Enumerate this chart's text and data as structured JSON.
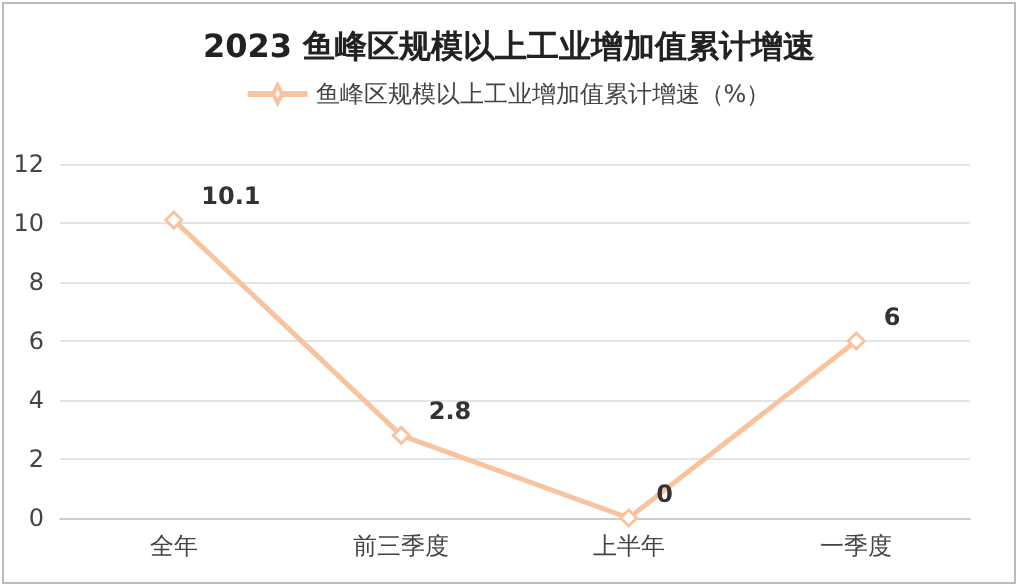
{
  "chart_data": {
    "type": "line",
    "title": "2023 鱼峰区规模以上工业增加值累计增速",
    "categories": [
      "全年",
      "前三季度",
      "上半年",
      "一季度"
    ],
    "series": [
      {
        "name": "鱼峰区规模以上工业增加值累计增速（%）",
        "color": "#f8c4a0",
        "values": [
          10.1,
          2.8,
          0,
          6
        ]
      }
    ],
    "ylim": [
      0,
      12
    ],
    "yticks": [
      0,
      2,
      4,
      6,
      8,
      10,
      12
    ],
    "grid": "y",
    "legend": "top",
    "marker": "diamond",
    "line_style": "solid",
    "data_labels": true
  }
}
